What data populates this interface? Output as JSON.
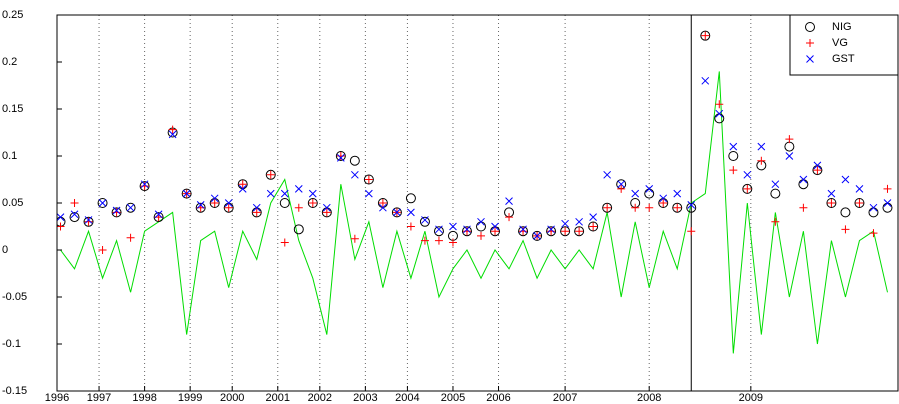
{
  "chart_data": {
    "type": "scatter",
    "x": [
      1,
      5,
      9,
      13,
      17,
      21,
      25,
      29,
      33,
      37,
      41,
      45,
      49,
      53,
      57,
      61,
      65,
      69,
      73,
      77,
      81,
      85,
      89,
      93,
      97,
      101,
      105,
      109,
      113,
      117,
      121,
      125,
      129,
      133,
      137,
      141,
      145,
      149,
      153,
      157,
      161,
      165,
      169,
      173,
      177,
      181,
      185,
      189,
      193,
      197,
      201,
      205,
      209,
      213,
      217,
      221,
      225,
      229,
      233,
      237
    ],
    "series": [
      {
        "name": "NIG",
        "marker": "o",
        "color": "#000000",
        "values": [
          0.03,
          0.035,
          0.03,
          0.05,
          0.04,
          0.045,
          0.068,
          0.035,
          0.125,
          0.06,
          0.045,
          0.05,
          0.045,
          0.07,
          0.04,
          0.08,
          0.05,
          0.022,
          0.05,
          0.04,
          0.1,
          0.095,
          0.075,
          0.05,
          0.04,
          0.055,
          0.03,
          0.02,
          0.015,
          0.02,
          0.025,
          0.02,
          0.04,
          0.02,
          0.015,
          0.02,
          0.02,
          0.02,
          0.025,
          0.045,
          0.07,
          0.05,
          0.06,
          0.05,
          0.045,
          0.045,
          0.228,
          0.14,
          0.1,
          0.065,
          0.09,
          0.06,
          0.11,
          0.07,
          0.085,
          0.05,
          0.04,
          0.05,
          0.04,
          0.045
        ]
      },
      {
        "name": "VG",
        "marker": "+",
        "color": "#ff0000",
        "values": [
          0.025,
          0.05,
          0.03,
          0.0,
          0.04,
          0.013,
          0.068,
          0.035,
          0.128,
          0.06,
          0.045,
          0.05,
          0.045,
          0.07,
          0.04,
          0.08,
          0.008,
          0.045,
          0.05,
          0.04,
          0.1,
          0.012,
          0.075,
          0.05,
          0.04,
          0.025,
          0.01,
          0.01,
          0.008,
          0.02,
          0.015,
          0.02,
          0.035,
          0.02,
          0.015,
          0.02,
          0.02,
          0.02,
          0.025,
          0.045,
          0.065,
          0.045,
          0.045,
          0.05,
          0.045,
          0.02,
          0.228,
          0.155,
          0.085,
          0.065,
          0.095,
          0.03,
          0.118,
          0.045,
          0.085,
          0.05,
          0.022,
          0.05,
          0.018,
          0.065
        ]
      },
      {
        "name": "GST",
        "marker": "x",
        "color": "#0000ff",
        "values": [
          0.035,
          0.038,
          0.032,
          0.05,
          0.042,
          0.045,
          0.07,
          0.038,
          0.123,
          0.06,
          0.048,
          0.055,
          0.05,
          0.065,
          0.045,
          0.06,
          0.06,
          0.065,
          0.06,
          0.045,
          0.098,
          0.08,
          0.06,
          0.045,
          0.04,
          0.04,
          0.032,
          0.022,
          0.025,
          0.022,
          0.03,
          0.025,
          0.052,
          0.022,
          0.015,
          0.022,
          0.028,
          0.03,
          0.035,
          0.08,
          0.07,
          0.06,
          0.065,
          0.055,
          0.06,
          0.048,
          0.18,
          0.145,
          0.11,
          0.08,
          0.11,
          0.07,
          0.1,
          0.075,
          0.09,
          0.06,
          0.075,
          0.065,
          0.045,
          0.05
        ]
      },
      {
        "marker": "line",
        "color": "#00dd00",
        "values": [
          0.0,
          -0.02,
          0.02,
          -0.03,
          0.01,
          -0.045,
          0.02,
          0.03,
          0.04,
          -0.09,
          0.01,
          0.02,
          -0.04,
          0.02,
          -0.01,
          0.05,
          0.075,
          0.01,
          -0.03,
          -0.09,
          0.07,
          -0.01,
          0.03,
          -0.04,
          0.02,
          -0.03,
          0.02,
          -0.05,
          -0.02,
          0.0,
          -0.03,
          0.0,
          -0.02,
          0.01,
          -0.03,
          0.0,
          -0.02,
          0.0,
          -0.02,
          0.04,
          -0.05,
          0.03,
          -0.04,
          0.02,
          -0.02,
          0.05,
          0.06,
          0.19,
          -0.11,
          0.05,
          -0.09,
          0.04,
          -0.05,
          0.02,
          -0.1,
          0.01,
          -0.05,
          0.01,
          0.02,
          -0.045
        ]
      }
    ],
    "xlim": [
      0,
      240
    ],
    "xticks": [
      {
        "value": 0,
        "label": "1996"
      },
      {
        "value": 12,
        "label": "1997"
      },
      {
        "value": 25,
        "label": "1998"
      },
      {
        "value": 38,
        "label": "1999"
      },
      {
        "value": 50,
        "label": "2000"
      },
      {
        "value": 63,
        "label": "2001"
      },
      {
        "value": 75,
        "label": "2002"
      },
      {
        "value": 88,
        "label": "2003"
      },
      {
        "value": 100,
        "label": "2004"
      },
      {
        "value": 113,
        "label": "2005"
      },
      {
        "value": 126,
        "label": "2006"
      },
      {
        "value": 145,
        "label": "2007"
      },
      {
        "value": 169,
        "label": "2008"
      },
      {
        "value": 198,
        "label": "2009"
      }
    ],
    "ylim": [
      -0.15,
      0.25
    ],
    "yticks": [
      -0.15,
      -0.1,
      -0.05,
      0,
      0.05,
      0.1,
      0.15,
      0.2,
      0.25
    ],
    "vline": 181,
    "grid": "x",
    "legend": "upper right"
  }
}
